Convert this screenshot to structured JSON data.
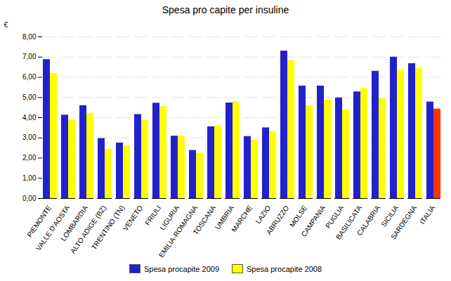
{
  "chart_data": {
    "type": "bar",
    "title": "Spesa pro capite per insuline",
    "categories": [
      "PIEMONTE",
      "VALLE D'AOSTA",
      "LOMBARDIA",
      "ALTO ADIGE (BZ)",
      "TRENTINO (TN)",
      "VENETO",
      "FRIULI",
      "LIGURIA",
      "EMILIA-ROMAGNA",
      "TOSCANA",
      "UMBRIA",
      "MARCHE",
      "LAZIO",
      "ABRUZZO",
      "MOLSE",
      "CAMPANIA",
      "PUGLIA",
      "BASILICATA",
      "CALABRIA",
      "SICILIA",
      "SARDEGNA",
      "ITALIA"
    ],
    "series": [
      {
        "name": "Spesa procapite 2009",
        "color": "#2222cc",
        "values": [
          6.88,
          4.13,
          4.6,
          2.97,
          2.75,
          4.16,
          4.72,
          3.09,
          2.38,
          3.55,
          4.73,
          3.07,
          3.5,
          7.3,
          5.57,
          5.57,
          4.98,
          5.28,
          6.3,
          7.0,
          6.68,
          4.78
        ]
      },
      {
        "name": "Spesa procapite 2008",
        "color": "#ffff00",
        "colors": [
          "#ffff00",
          "#ffff00",
          "#ffff00",
          "#ffff00",
          "#ffff00",
          "#ffff00",
          "#ffff00",
          "#ffff00",
          "#ffff00",
          "#ffff00",
          "#ffff00",
          "#ffff00",
          "#ffff00",
          "#ffff00",
          "#ffff00",
          "#ffff00",
          "#ffff00",
          "#ffff00",
          "#ffff00",
          "#ffff00",
          "#ffff00",
          "#ff3300"
        ],
        "values": [
          6.2,
          3.9,
          4.22,
          2.44,
          2.6,
          3.88,
          4.55,
          3.08,
          2.25,
          3.6,
          4.8,
          2.9,
          3.32,
          6.83,
          4.6,
          4.88,
          4.4,
          5.45,
          4.95,
          6.35,
          6.45,
          4.43
        ]
      }
    ],
    "ylabel": "€",
    "ylim": [
      0,
      8.0
    ],
    "yticks": [
      {
        "value": 0.0,
        "label": "0,00"
      },
      {
        "value": 1.0,
        "label": "1,00"
      },
      {
        "value": 2.0,
        "label": "2,00"
      },
      {
        "value": 3.0,
        "label": "3,00"
      },
      {
        "value": 4.0,
        "label": "4,00"
      },
      {
        "value": 5.0,
        "label": "5,00"
      },
      {
        "value": 6.0,
        "label": "6,00"
      },
      {
        "value": 7.0,
        "label": "7,00"
      },
      {
        "value": 8.0,
        "label": "8,00"
      }
    ],
    "grid": true,
    "legend": "bottom"
  }
}
